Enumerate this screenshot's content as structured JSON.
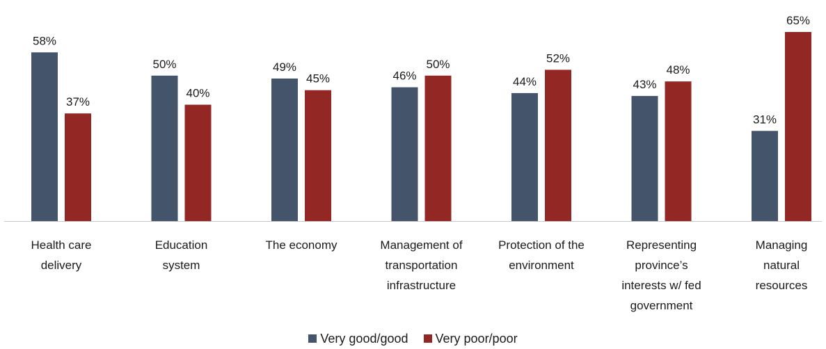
{
  "chart_data": {
    "type": "bar",
    "categories": [
      [
        "Health care",
        "delivery"
      ],
      [
        "Education",
        "system"
      ],
      [
        "The economy"
      ],
      [
        "Management of",
        "transportation",
        "infrastructure"
      ],
      [
        "Protection of the",
        "environment"
      ],
      [
        "Representing",
        "province’s",
        "interests w/ fed",
        "government"
      ],
      [
        "Managing",
        "natural",
        "resources"
      ]
    ],
    "series": [
      {
        "name": "Very good/good",
        "color": "#44546a",
        "values": [
          58,
          50,
          49,
          46,
          44,
          43,
          31
        ]
      },
      {
        "name": "Very poor/poor",
        "color": "#922724",
        "values": [
          37,
          40,
          45,
          50,
          52,
          48,
          65
        ]
      }
    ],
    "value_suffix": "%",
    "ylim": [
      0,
      65
    ],
    "legend_position": "bottom",
    "grid": false
  }
}
